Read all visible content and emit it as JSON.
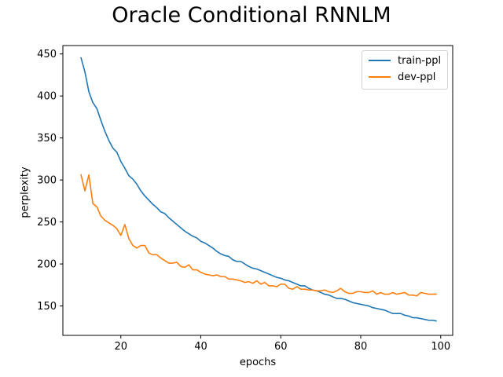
{
  "chart_data": {
    "type": "line",
    "title": "Oracle Conditional RNNLM",
    "xlabel": "epochs",
    "ylabel": "perplexity",
    "xlim": [
      5.5,
      103
    ],
    "ylim": [
      115,
      460
    ],
    "xticks": [
      20,
      40,
      60,
      80,
      100
    ],
    "yticks": [
      150,
      200,
      250,
      300,
      350,
      400,
      450
    ],
    "grid": false,
    "legend_position": "top-right",
    "x": [
      10,
      11,
      12,
      13,
      14,
      15,
      16,
      17,
      18,
      19,
      20,
      21,
      22,
      23,
      24,
      25,
      26,
      27,
      28,
      29,
      30,
      31,
      32,
      33,
      34,
      35,
      36,
      37,
      38,
      39,
      40,
      41,
      42,
      43,
      44,
      45,
      46,
      47,
      48,
      49,
      50,
      51,
      52,
      53,
      54,
      55,
      56,
      57,
      58,
      59,
      60,
      61,
      62,
      63,
      64,
      65,
      66,
      67,
      68,
      69,
      70,
      71,
      72,
      73,
      74,
      75,
      76,
      77,
      78,
      79,
      80,
      81,
      82,
      83,
      84,
      85,
      86,
      87,
      88,
      89,
      90,
      91,
      92,
      93,
      94,
      95,
      96,
      97,
      98,
      99
    ],
    "series": [
      {
        "name": "train-ppl",
        "color": "#1f77b4",
        "values": [
          446,
          429,
          405,
          392,
          385,
          371,
          358,
          347,
          338,
          333,
          322,
          314,
          305,
          301,
          295,
          287,
          281,
          276,
          271,
          267,
          262,
          260,
          255,
          251,
          247,
          243,
          239,
          236,
          233,
          231,
          227,
          225,
          222,
          219,
          215,
          212,
          210,
          209,
          205,
          203,
          203,
          200,
          197,
          195,
          194,
          192,
          190,
          188,
          186,
          184,
          183,
          181,
          180,
          178,
          176,
          174,
          174,
          171,
          169,
          168,
          166,
          164,
          163,
          161,
          159,
          159,
          158,
          156,
          154,
          153,
          152,
          151,
          150,
          148,
          147,
          146,
          145,
          143,
          141,
          141,
          141,
          139,
          138,
          136,
          136,
          135,
          134,
          133,
          133,
          132
        ]
      },
      {
        "name": "dev-ppl",
        "color": "#ff7f0e",
        "values": [
          307,
          287,
          306,
          272,
          268,
          257,
          252,
          249,
          246,
          242,
          234,
          247,
          230,
          222,
          219,
          222,
          222,
          213,
          211,
          211,
          207,
          204,
          201,
          201,
          202,
          197,
          196,
          199,
          193,
          193,
          190,
          188,
          187,
          186,
          187,
          185,
          185,
          182,
          182,
          181,
          180,
          178,
          179,
          177,
          180,
          176,
          178,
          174,
          174,
          173,
          176,
          176,
          171,
          170,
          173,
          170,
          170,
          169,
          169,
          168,
          168,
          169,
          167,
          166,
          168,
          171,
          167,
          165,
          165,
          167,
          167,
          166,
          166,
          168,
          164,
          166,
          164,
          164,
          166,
          164,
          165,
          166,
          163,
          163,
          162,
          166,
          165,
          164,
          164,
          164
        ]
      }
    ]
  }
}
